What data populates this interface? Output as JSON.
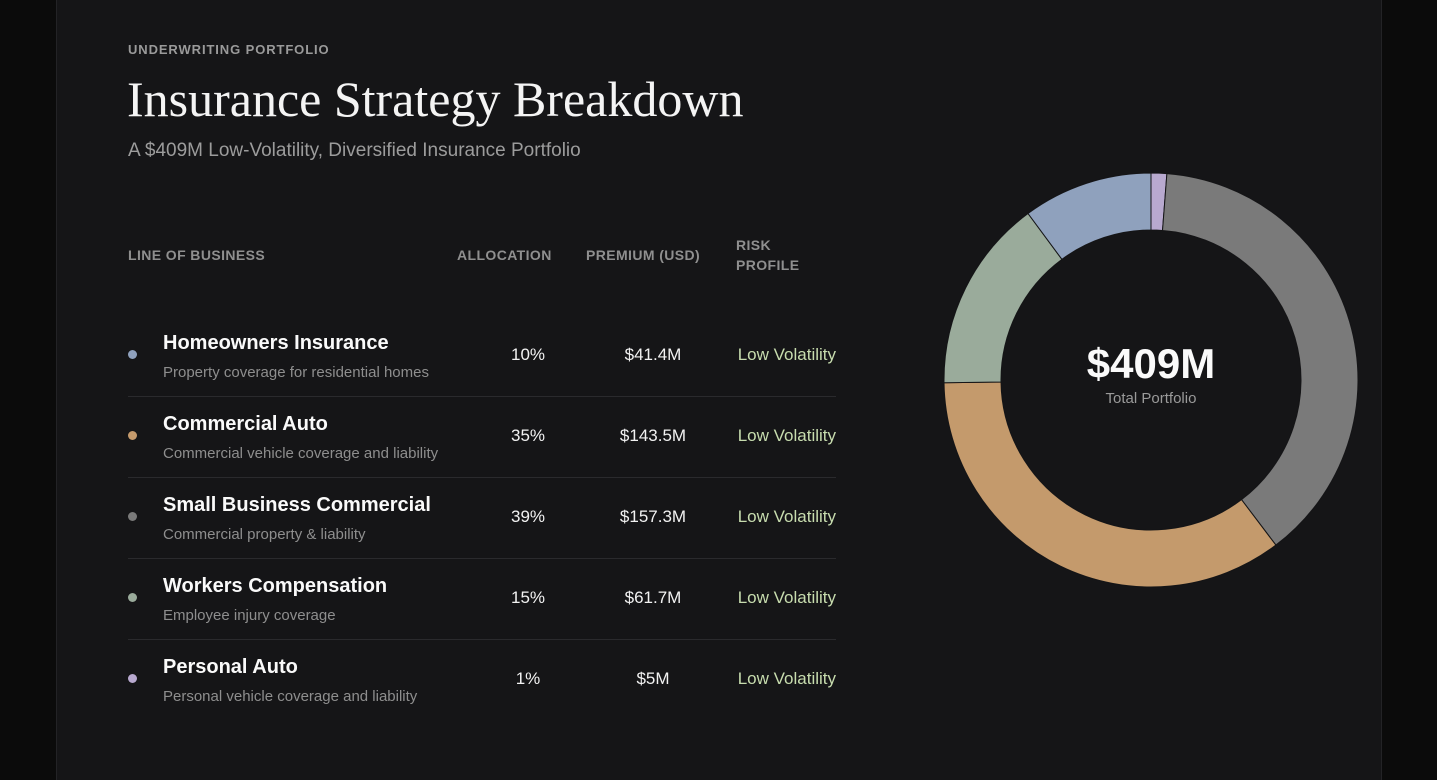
{
  "header": {
    "eyebrow": "UNDERWRITING PORTFOLIO",
    "title": "Insurance Strategy Breakdown",
    "subtitle": "A $409M Low-Volatility, Diversified Insurance Portfolio"
  },
  "table": {
    "columns": [
      "LINE OF BUSINESS",
      "ALLOCATION",
      "PREMIUM (USD)",
      "RISK PROFILE"
    ],
    "rows": [
      {
        "name": "Homeowners Insurance",
        "description": "Property coverage for residential homes",
        "allocation": "10%",
        "premium": "$41.4M",
        "risk": "Low Volatility",
        "color": "#8fa1bd"
      },
      {
        "name": "Commercial Auto",
        "description": "Commercial vehicle coverage and liability",
        "allocation": "35%",
        "premium": "$143.5M",
        "risk": "Low Volatility",
        "color": "#c49a6c"
      },
      {
        "name": "Small Business Commercial",
        "description": "Commercial property & liability",
        "allocation": "39%",
        "premium": "$157.3M",
        "risk": "Low Volatility",
        "color": "#7a7a7a"
      },
      {
        "name": "Workers Compensation",
        "description": "Employee injury coverage",
        "allocation": "15%",
        "premium": "$61.7M",
        "risk": "Low Volatility",
        "color": "#9aab9b"
      },
      {
        "name": "Personal Auto",
        "description": "Personal vehicle coverage and liability",
        "allocation": "1%",
        "premium": "$5M",
        "risk": "Low Volatility",
        "color": "#b8a9cf"
      }
    ]
  },
  "chart_data": {
    "type": "pie",
    "variant": "donut",
    "center_value": "$409M",
    "center_label": "Total Portfolio",
    "slices": [
      {
        "label": "Personal Auto",
        "value": 5,
        "color": "#b8a9cf"
      },
      {
        "label": "Small Business Commercial",
        "value": 157.3,
        "color": "#7a7a7a"
      },
      {
        "label": "Commercial Auto",
        "value": 143.5,
        "color": "#c49a6c"
      },
      {
        "label": "Workers Compensation",
        "value": 61.7,
        "color": "#9aab9b"
      },
      {
        "label": "Homeowners Insurance",
        "value": 41.4,
        "color": "#8fa1bd"
      }
    ],
    "direction": "clockwise",
    "start_angle": "top"
  }
}
